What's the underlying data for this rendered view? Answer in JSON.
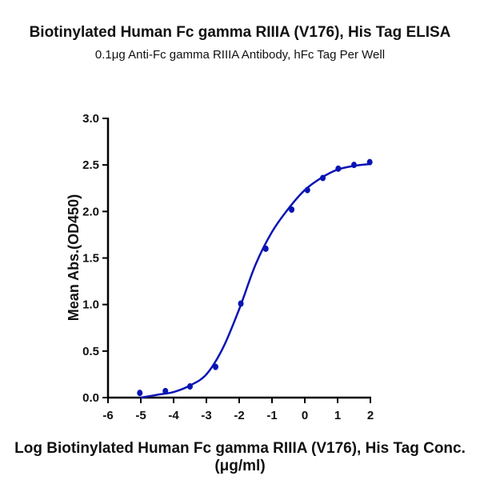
{
  "chart_data": {
    "type": "scatter",
    "title": "Biotinylated Human Fc gamma RIIIA (V176), His Tag ELISA",
    "subtitle": "0.1μg Anti-Fc gamma RIIIA Antibody, hFc Tag Per Well",
    "xlabel": "Log Biotinylated Human Fc gamma RIIIA (V176), His Tag Conc.(μg/ml)",
    "ylabel": "Mean Abs.(OD450)",
    "xlim": [
      -6,
      2
    ],
    "ylim": [
      0,
      3.0
    ],
    "xticks": [
      "-6",
      "-5",
      "-4",
      "-3",
      "-2",
      "-1",
      "0",
      "1",
      "2"
    ],
    "yticks": [
      "0.0",
      "0.5",
      "1.0",
      "1.5",
      "2.0",
      "2.5",
      "3.0"
    ],
    "grid": false,
    "color": "#0a14b4",
    "points": {
      "x": [
        -5.03,
        -4.25,
        -3.5,
        -2.72,
        -1.95,
        -1.19,
        -0.4,
        0.08,
        0.55,
        1.02,
        1.5,
        1.98
      ],
      "y": [
        0.05,
        0.07,
        0.12,
        0.33,
        1.01,
        1.6,
        2.02,
        2.23,
        2.36,
        2.46,
        2.5,
        2.53
      ]
    },
    "fit_curve": {
      "x": [
        -5,
        -4.5,
        -4,
        -3.5,
        -3,
        -2.5,
        -2,
        -1.5,
        -1,
        -0.5,
        0,
        0.5,
        1,
        1.5,
        2
      ],
      "y": [
        0.0,
        0.03,
        0.06,
        0.13,
        0.25,
        0.53,
        0.95,
        1.43,
        1.78,
        2.03,
        2.23,
        2.36,
        2.45,
        2.49,
        2.51
      ]
    }
  }
}
